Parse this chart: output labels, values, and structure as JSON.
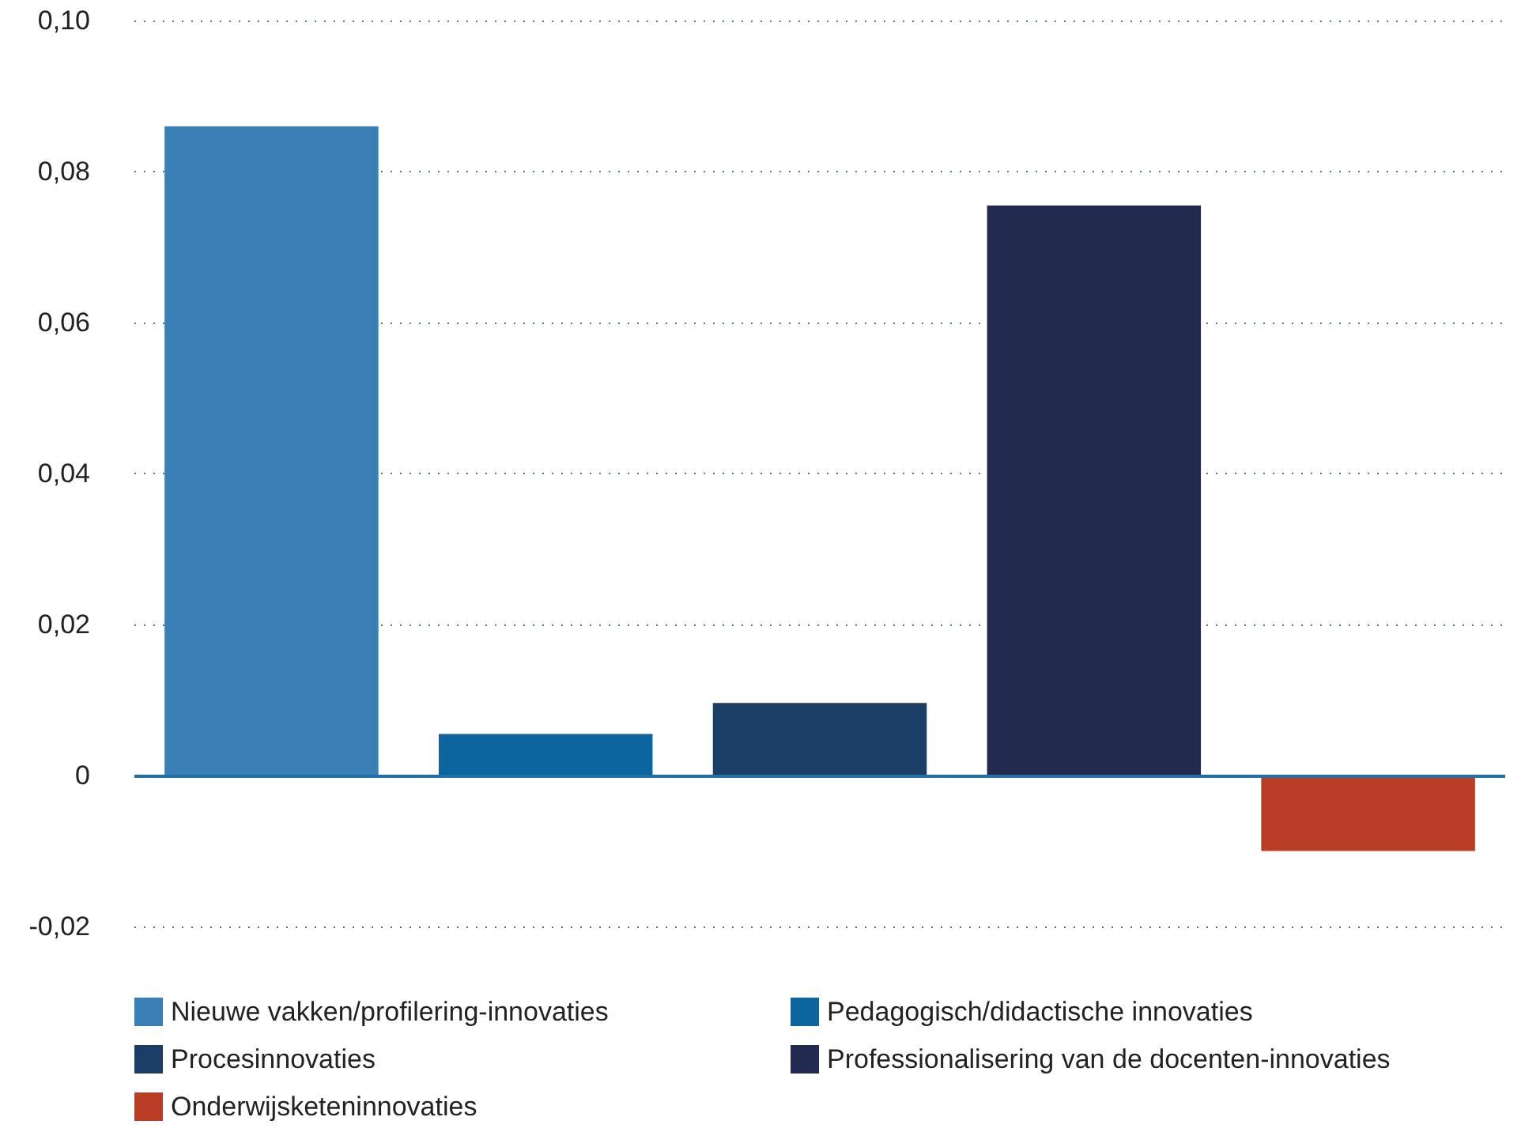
{
  "chart_data": {
    "type": "bar",
    "categories": [
      null,
      null,
      null,
      null,
      null
    ],
    "series": [
      {
        "name": "Nieuwe vakken/profilering-innovaties",
        "color": "#3a80b7",
        "values": [
          0.086,
          null,
          null,
          null,
          null
        ]
      },
      {
        "name": "Pedagogisch/didactische innovaties",
        "color": "#0d65a0",
        "values": [
          null,
          0.0055,
          null,
          null,
          null
        ]
      },
      {
        "name": "Procesinnovaties",
        "color": "#1b3e66",
        "values": [
          null,
          null,
          0.0096,
          null,
          null
        ]
      },
      {
        "name": "Professionalisering van de docenten-innovaties",
        "color": "#222a4f",
        "values": [
          null,
          null,
          null,
          0.0755,
          null
        ]
      },
      {
        "name": "Onderwijsketeninnovaties",
        "color": "#b93d25",
        "values": [
          null,
          null,
          null,
          null,
          -0.01
        ]
      }
    ],
    "ylim": [
      -0.02,
      0.1
    ],
    "ref_lines": [
      {
        "axis": "y",
        "value": 0,
        "color": "#1f6fa8"
      }
    ],
    "yticks": [
      {
        "value": -0.02,
        "label": "-0,02"
      },
      {
        "value": 0,
        "label": "0"
      },
      {
        "value": 0.02,
        "label": "0,02"
      },
      {
        "value": 0.04,
        "label": "0,04"
      },
      {
        "value": 0.06,
        "label": "0,06"
      },
      {
        "value": 0.08,
        "label": "0,08"
      },
      {
        "value": 0.1,
        "label": "0,10"
      }
    ],
    "grid": "y",
    "legend": "bottom"
  }
}
